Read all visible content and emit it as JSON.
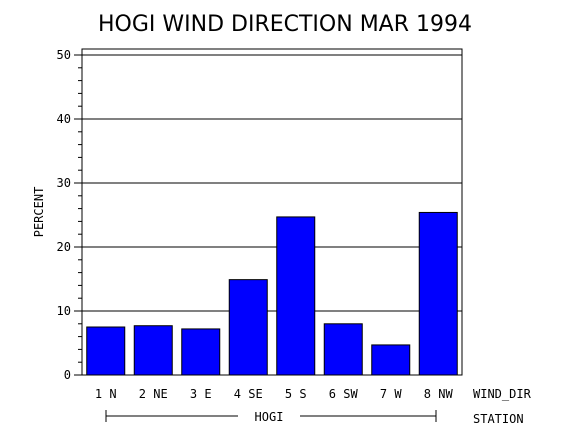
{
  "chart_data": {
    "type": "bar",
    "title": "HOGI WIND DIRECTION MAR 1994",
    "ylabel": "PERCENT",
    "xlabel": "WIND_DIR",
    "group_axis_label": "STATION",
    "group_label": "HOGI",
    "ylim": [
      0,
      50
    ],
    "yticks": [
      "0",
      "10",
      "20",
      "30",
      "40",
      "50"
    ],
    "grid": true,
    "categories": [
      "1 N",
      "2 NE",
      "3 E",
      "4 SE",
      "5 S",
      "6 SW",
      "7 W",
      "8 NW"
    ],
    "values": [
      7.5,
      7.7,
      7.2,
      14.9,
      24.7,
      8.0,
      4.7,
      25.4
    ],
    "bar_color": "#0000ff"
  }
}
